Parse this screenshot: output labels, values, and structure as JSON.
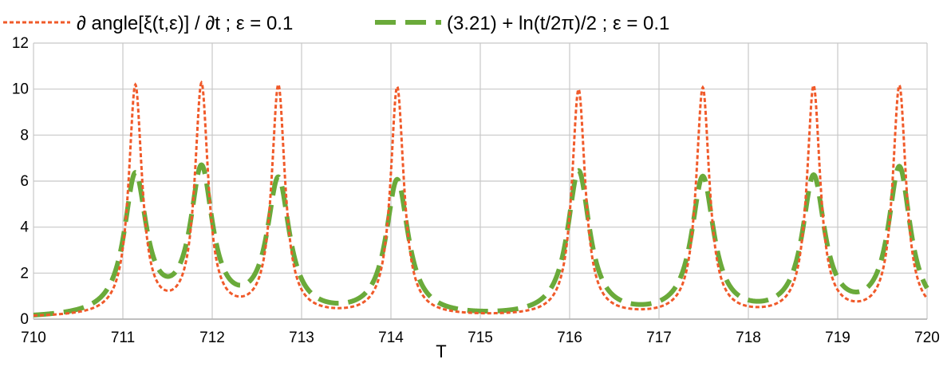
{
  "chart_data": {
    "type": "line",
    "title": "",
    "xlabel": "T",
    "ylabel": "",
    "xlim": [
      710,
      720
    ],
    "ylim": [
      0,
      12
    ],
    "x_ticks": [
      710,
      711,
      712,
      713,
      714,
      715,
      716,
      717,
      718,
      719,
      720
    ],
    "y_ticks": [
      0,
      2,
      4,
      6,
      8,
      10,
      12
    ],
    "grid": true,
    "legend_position": "top",
    "series": [
      {
        "name": "∂ angle[ξ(t,ε)] / ∂t ; ε = 0.1",
        "color": "#f05a2a",
        "style": "dotted",
        "peaks": [
          {
            "x": 711.14,
            "y": 9.95,
            "w": 0.09
          },
          {
            "x": 711.88,
            "y": 9.95,
            "w": 0.09
          },
          {
            "x": 712.74,
            "y": 9.95,
            "w": 0.09
          },
          {
            "x": 714.07,
            "y": 9.95,
            "w": 0.09
          },
          {
            "x": 716.1,
            "y": 9.85,
            "w": 0.09
          },
          {
            "x": 717.49,
            "y": 9.9,
            "w": 0.09
          },
          {
            "x": 718.73,
            "y": 9.95,
            "w": 0.09
          },
          {
            "x": 719.69,
            "y": 10.0,
            "w": 0.09
          }
        ],
        "baseline": 0.05
      },
      {
        "name": "(3.21) +  ln(t/2π)/2 ; ε = 0.1",
        "color": "#6aaa3a",
        "style": "dashed",
        "peaks": [
          {
            "x": 711.14,
            "y": 6.05,
            "w": 0.15
          },
          {
            "x": 711.88,
            "y": 6.25,
            "w": 0.15
          },
          {
            "x": 712.74,
            "y": 5.85,
            "w": 0.15
          },
          {
            "x": 714.07,
            "y": 5.9,
            "w": 0.15
          },
          {
            "x": 716.1,
            "y": 6.3,
            "w": 0.15
          },
          {
            "x": 717.49,
            "y": 6.0,
            "w": 0.15
          },
          {
            "x": 718.73,
            "y": 6.0,
            "w": 0.15
          },
          {
            "x": 719.69,
            "y": 6.45,
            "w": 0.15
          }
        ],
        "baseline": 0.0
      }
    ]
  }
}
